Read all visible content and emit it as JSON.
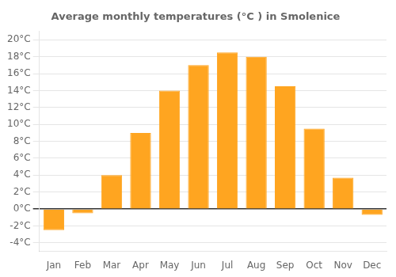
{
  "chart_data": {
    "type": "bar",
    "title": "Average monthly temperatures (°C ) in Smolenice",
    "categories": [
      "Jan",
      "Feb",
      "Mar",
      "Apr",
      "May",
      "Jun",
      "Jul",
      "Aug",
      "Sep",
      "Oct",
      "Nov",
      "Dec"
    ],
    "values": [
      -2.5,
      -0.5,
      4.0,
      9.0,
      14.0,
      17.0,
      18.5,
      18.0,
      14.5,
      9.5,
      3.7,
      -0.7
    ],
    "color": "#FFA520",
    "ylim": [
      -5,
      21
    ],
    "yticks": [
      {
        "value": -4,
        "label": "-4°C"
      },
      {
        "value": -2,
        "label": "-2°C"
      },
      {
        "value": 0,
        "label": "0°C"
      },
      {
        "value": 2,
        "label": "2°C"
      },
      {
        "value": 4,
        "label": "4°C"
      },
      {
        "value": 6,
        "label": "6°C"
      },
      {
        "value": 8,
        "label": "8°C"
      },
      {
        "value": 10,
        "label": "10°C"
      },
      {
        "value": 12,
        "label": "12°C"
      },
      {
        "value": 14,
        "label": "14°C"
      },
      {
        "value": 16,
        "label": "16°C"
      },
      {
        "value": 18,
        "label": "18°C"
      },
      {
        "value": 20,
        "label": "20°C"
      }
    ],
    "grid": true
  }
}
